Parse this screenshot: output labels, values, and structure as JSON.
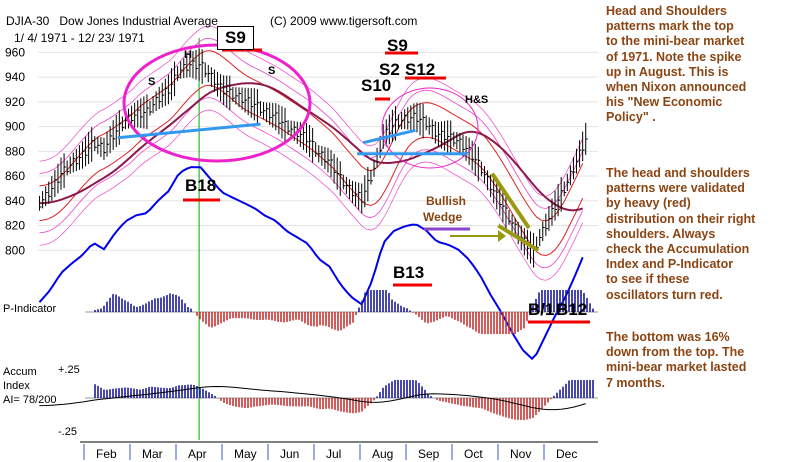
{
  "header": {
    "ticker": "DJIA-30",
    "title": "Dow Jones Industrial Average",
    "copyright": "(C) 2009 www.tigersoft.com",
    "date_range": "1/ 4/ 1971 - 12/ 23/ 1971"
  },
  "signals": {
    "s9_top": "S9",
    "s9_right": "S9",
    "s2": "S2",
    "s12": "S12",
    "s10": "S10",
    "b18": "B18",
    "b13": "B13",
    "b_bottom": "B/1",
    "b12": "B12"
  },
  "annotations": {
    "head": "H",
    "shoulder_left": "S",
    "shoulder_right": "S",
    "hs_right": "H&S",
    "wedge_line1": "Bullish",
    "wedge_line2": "Wedge"
  },
  "indicators": {
    "p_indicator": "P-Indicator",
    "accum_line1": "Accum",
    "accum_line2": "Index",
    "ai_value": "AI= 78/200",
    "accum_top": "+.25",
    "accum_bottom": "-.25"
  },
  "commentary": {
    "block1": [
      "Head and Shoulders",
      "patterns mark the top",
      "to the mini-bear market",
      "of 1971.  Note the spike",
      "up in August.  This is",
      "when Nixon announced",
      "his \"New Economic",
      "Policy\" ."
    ],
    "block2": [
      "The head and shoulders",
      "patterns were validated",
      "by heavy (red)",
      "distribution on their right",
      "shoulders.  Always",
      "check the Accumulation",
      "Index and P-Indicator",
      "to see  if these",
      "oscillators turn red."
    ],
    "block3": [
      "The bottom was 16%",
      "down from the top.  The",
      "mini-bear market lasted",
      "7 months."
    ]
  },
  "colors": {
    "price_bars": "#000000",
    "ma": "#8b1a4b",
    "bands_pink": "#ee44cc",
    "bands_red": "#dd2222",
    "rel_strength": "#0000ee",
    "neckline": "#3399ee",
    "circle": "#ee22cc",
    "wedge": "#9a9a10",
    "signal_underline": "#ee0000",
    "commentary": "#8b4513",
    "p_positive": "#1a1a99",
    "p_negative": "#cc3333",
    "vline": "#00aa00"
  },
  "chart_data": {
    "type": "line",
    "title": "Dow Jones Industrial Average",
    "xlabel": "",
    "ylabel": "",
    "date_range": [
      "1971-01-04",
      "1971-12-23"
    ],
    "ylim": [
      780,
      970
    ],
    "y_ticks": [
      800,
      820,
      840,
      860,
      880,
      900,
      920,
      940,
      960
    ],
    "x_ticks": [
      "Feb",
      "Mar",
      "Apr",
      "May",
      "Jun",
      "Jul",
      "Aug",
      "Sep",
      "Oct",
      "Nov",
      "Dec"
    ],
    "grid": true,
    "series": [
      {
        "name": "DJIA-30",
        "x": [
          1,
          8,
          15,
          22,
          29,
          36,
          43,
          50,
          57,
          64,
          71,
          78,
          85,
          92,
          99,
          106,
          113,
          120,
          127,
          134,
          141,
          148,
          155,
          162,
          169,
          176,
          183,
          190,
          197,
          204,
          211,
          218,
          225,
          232,
          239,
          246,
          253,
          260,
          267,
          274,
          281,
          288,
          295,
          302,
          309,
          316,
          323,
          330,
          337,
          344,
          351,
          357
        ],
        "y": [
          838,
          848,
          862,
          870,
          877,
          887,
          882,
          895,
          905,
          910,
          912,
          922,
          930,
          945,
          950,
          950,
          940,
          930,
          926,
          922,
          918,
          912,
          908,
          900,
          895,
          890,
          878,
          872,
          858,
          848,
          842,
          862,
          892,
          902,
          906,
          908,
          903,
          894,
          892,
          888,
          880,
          868,
          852,
          838,
          822,
          808,
          800,
          818,
          836,
          852,
          872,
          890
        ]
      }
    ]
  }
}
